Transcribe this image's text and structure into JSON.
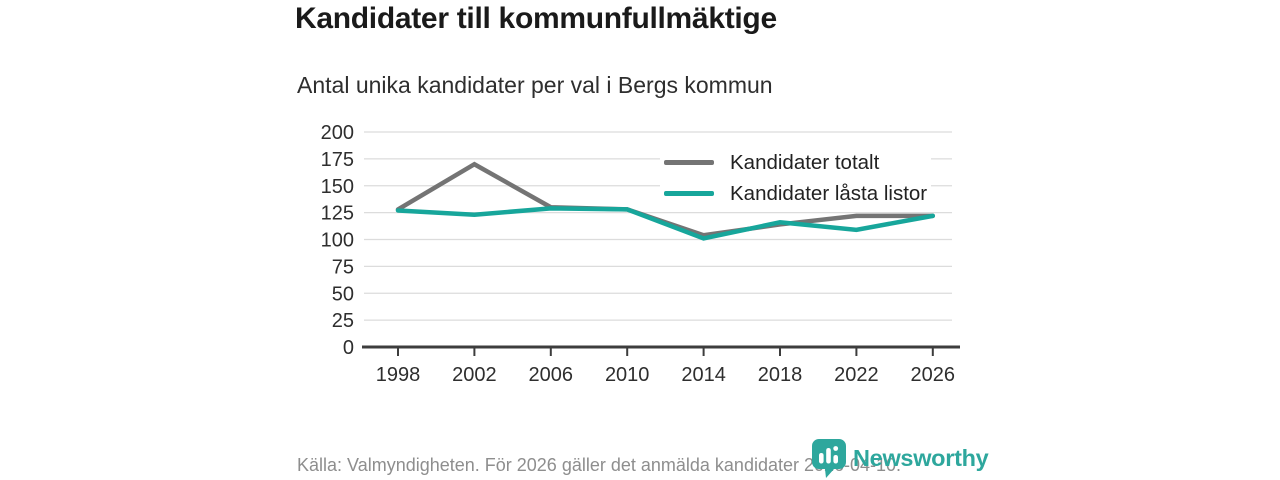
{
  "title": "Kandidater till kommunfullmäktige",
  "subtitle": "Antal unika kandidater per val i Bergs kommun",
  "colors": {
    "total_line": "#747474",
    "locked_line": "#17a69b",
    "grid": "#dcdcdc",
    "axis": "#3d3d3d",
    "tick_text": "#2e2e2e",
    "muted_text": "#8e8e8e",
    "brand_teal": "#2ea79d"
  },
  "legend": {
    "items": [
      {
        "label": "Kandidater totalt",
        "color": "#747474"
      },
      {
        "label": "Kandidater låsta listor",
        "color": "#17a69b"
      }
    ]
  },
  "chart_data": {
    "type": "line",
    "x": [
      1998,
      2002,
      2006,
      2010,
      2014,
      2018,
      2022,
      2026
    ],
    "series": [
      {
        "name": "Kandidater totalt",
        "color": "#747474",
        "values": [
          128,
          170,
          130,
          128,
          104,
          114,
          122,
          122
        ]
      },
      {
        "name": "Kandidater låsta listor",
        "color": "#17a69b",
        "values": [
          127,
          123,
          129,
          128,
          101,
          116,
          109,
          122
        ]
      }
    ],
    "title": "Kandidater till kommunfullmäktige",
    "subtitle": "Antal unika kandidater per val i Bergs kommun",
    "xlabel": "",
    "ylabel": "",
    "ylim": [
      0,
      200
    ],
    "ytick_step": 25,
    "grid": "horizontal",
    "legend_position": "top-right"
  },
  "footer": {
    "source_text": "Källa: Valmyndigheten. För 2026 gäller det anmälda kandidater 2026-04-10."
  },
  "branding": {
    "logo_text": "Newsworthy"
  }
}
